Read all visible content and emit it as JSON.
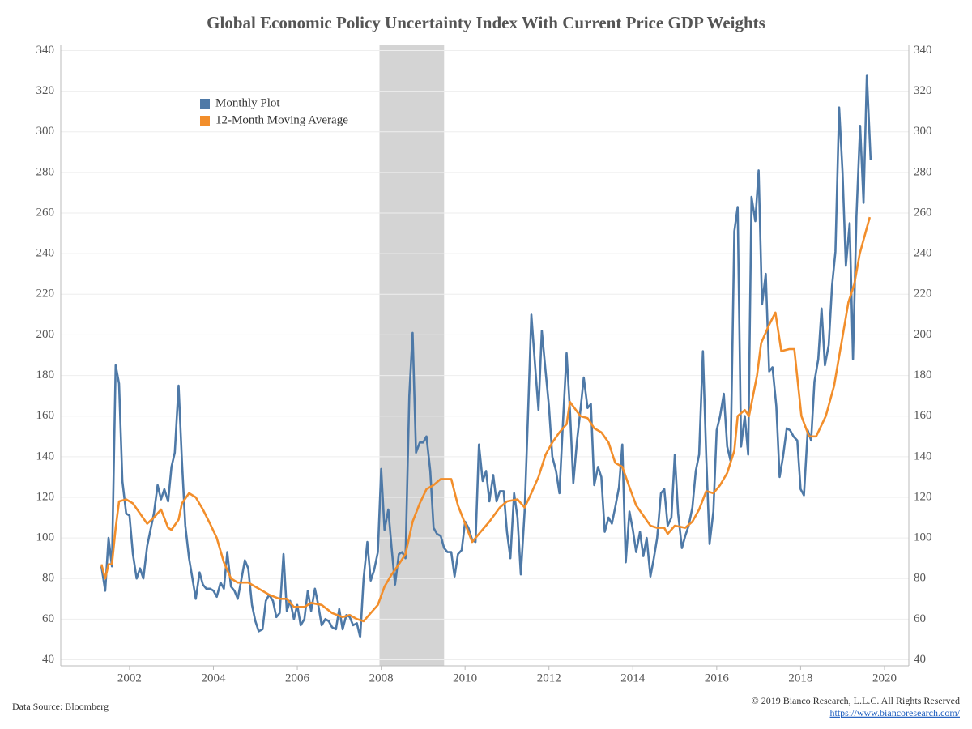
{
  "chart_data": {
    "type": "line",
    "title": "Global Economic Policy Uncertainty Index With Current Price GDP Weights",
    "source": "Data Source: Bloomberg",
    "copyright": "© 2019  Bianco Research, L.L.C. All Rights Reserved",
    "url": "https://www.biancoresearch.com/",
    "xlim": [
      2000.36,
      2020.58
    ],
    "xticks": [
      2002,
      2004,
      2006,
      2008,
      2010,
      2012,
      2014,
      2016,
      2018,
      2020
    ],
    "ylim": [
      37,
      343
    ],
    "yticks": [
      40,
      60,
      80,
      100,
      120,
      140,
      160,
      180,
      200,
      220,
      240,
      260,
      280,
      300,
      320,
      340
    ],
    "grid": true,
    "right_axis": true,
    "legend": "upper-left",
    "recession": [
      2007.96,
      2009.5
    ],
    "recession_color": "#d4d4d4",
    "series": [
      {
        "name": "Monthly Plot",
        "color": "#4e79a7",
        "x": [
          2001.33,
          2001.42,
          2001.5,
          2001.58,
          2001.67,
          2001.75,
          2001.83,
          2001.92,
          2002.0,
          2002.08,
          2002.17,
          2002.25,
          2002.33,
          2002.42,
          2002.5,
          2002.58,
          2002.67,
          2002.75,
          2002.83,
          2002.92,
          2003.0,
          2003.08,
          2003.17,
          2003.25,
          2003.33,
          2003.42,
          2003.5,
          2003.58,
          2003.67,
          2003.75,
          2003.83,
          2003.92,
          2004.0,
          2004.08,
          2004.17,
          2004.25,
          2004.33,
          2004.42,
          2004.5,
          2004.58,
          2004.67,
          2004.75,
          2004.83,
          2004.92,
          2005.0,
          2005.08,
          2005.17,
          2005.25,
          2005.33,
          2005.42,
          2005.5,
          2005.58,
          2005.67,
          2005.75,
          2005.83,
          2005.92,
          2006.0,
          2006.08,
          2006.17,
          2006.25,
          2006.33,
          2006.42,
          2006.5,
          2006.58,
          2006.67,
          2006.75,
          2006.83,
          2006.92,
          2007.0,
          2007.08,
          2007.17,
          2007.25,
          2007.33,
          2007.42,
          2007.5,
          2007.58,
          2007.67,
          2007.75,
          2007.83,
          2007.92,
          2008.0,
          2008.08,
          2008.17,
          2008.25,
          2008.33,
          2008.42,
          2008.5,
          2008.58,
          2008.67,
          2008.75,
          2008.83,
          2008.92,
          2009.0,
          2009.08,
          2009.17,
          2009.25,
          2009.33,
          2009.42,
          2009.5,
          2009.58,
          2009.67,
          2009.75,
          2009.83,
          2009.92,
          2010.0,
          2010.08,
          2010.17,
          2010.25,
          2010.33,
          2010.42,
          2010.5,
          2010.58,
          2010.67,
          2010.75,
          2010.83,
          2010.92,
          2011.0,
          2011.08,
          2011.17,
          2011.25,
          2011.33,
          2011.42,
          2011.5,
          2011.58,
          2011.67,
          2011.75,
          2011.83,
          2011.92,
          2012.0,
          2012.08,
          2012.17,
          2012.25,
          2012.33,
          2012.42,
          2012.5,
          2012.58,
          2012.67,
          2012.75,
          2012.83,
          2012.92,
          2013.0,
          2013.08,
          2013.17,
          2013.25,
          2013.33,
          2013.42,
          2013.5,
          2013.58,
          2013.67,
          2013.75,
          2013.83,
          2013.92,
          2014.0,
          2014.08,
          2014.17,
          2014.25,
          2014.33,
          2014.42,
          2014.5,
          2014.58,
          2014.67,
          2014.75,
          2014.83,
          2014.92,
          2015.0,
          2015.08,
          2015.17,
          2015.25,
          2015.33,
          2015.42,
          2015.5,
          2015.58,
          2015.67,
          2015.75,
          2015.83,
          2015.92,
          2016.0,
          2016.08,
          2016.17,
          2016.25,
          2016.33,
          2016.42,
          2016.5,
          2016.58,
          2016.67,
          2016.75,
          2016.83,
          2016.92,
          2017.0,
          2017.08,
          2017.17,
          2017.25,
          2017.33,
          2017.42,
          2017.5,
          2017.58,
          2017.67,
          2017.75,
          2017.83,
          2017.92,
          2018.0,
          2018.08,
          2018.17,
          2018.25,
          2018.33,
          2018.42,
          2018.5,
          2018.58,
          2018.67,
          2018.75,
          2018.83,
          2018.92,
          2019.0,
          2019.08,
          2019.17,
          2019.25,
          2019.33,
          2019.42,
          2019.5,
          2019.58,
          2019.67
        ],
        "values": [
          86,
          74,
          100,
          86,
          185,
          176,
          128,
          112,
          111,
          92,
          80,
          85,
          80,
          96,
          104,
          112,
          126,
          119,
          124,
          118,
          135,
          142,
          175,
          138,
          106,
          90,
          80,
          70,
          83,
          77,
          75,
          75,
          74,
          71,
          78,
          75,
          93,
          76,
          74,
          70,
          80,
          89,
          85,
          67,
          59,
          54,
          55,
          69,
          72,
          69,
          61,
          63,
          92,
          64,
          69,
          60,
          67,
          57,
          60,
          74,
          64,
          75,
          67,
          57,
          60,
          59,
          56,
          55,
          65,
          55,
          62,
          61,
          57,
          58,
          51,
          80,
          98,
          79,
          84,
          93,
          134,
          104,
          114,
          95,
          77,
          92,
          93,
          90,
          170,
          201,
          142,
          147,
          147,
          150,
          133,
          105,
          102,
          101,
          95,
          93,
          93,
          81,
          92,
          94,
          108,
          105,
          99,
          98,
          146,
          128,
          133,
          118,
          131,
          118,
          123,
          123,
          103,
          90,
          122,
          110,
          82,
          113,
          160,
          210,
          185,
          163,
          202,
          182,
          165,
          140,
          133,
          122,
          155,
          191,
          163,
          127,
          148,
          163,
          179,
          164,
          166,
          126,
          135,
          130,
          103,
          110,
          107,
          115,
          125,
          146,
          88,
          113,
          104,
          93,
          103,
          91,
          100,
          81,
          90,
          100,
          122,
          124,
          106,
          110,
          141,
          112,
          95,
          101,
          106,
          115,
          133,
          141,
          192,
          140,
          97,
          113,
          153,
          160,
          171,
          145,
          138,
          251,
          263,
          145,
          160,
          141,
          268,
          256,
          281,
          215,
          230,
          182,
          184,
          165,
          130,
          140,
          154,
          153,
          150,
          148,
          124,
          121,
          153,
          148,
          177,
          188,
          213,
          185,
          195,
          224,
          241,
          312,
          280,
          234,
          255,
          188,
          258,
          303,
          265,
          328,
          286
        ]
      },
      {
        "name": "12-Month Moving Average",
        "color": "#f28e2b",
        "x": [
          2001.33,
          2001.42,
          2001.5,
          2001.58,
          2001.67,
          2001.75,
          2001.92,
          2002.08,
          2002.25,
          2002.42,
          2002.58,
          2002.75,
          2002.92,
          2003.0,
          2003.17,
          2003.25,
          2003.42,
          2003.58,
          2003.75,
          2003.92,
          2004.08,
          2004.25,
          2004.42,
          2004.58,
          2004.83,
          2005.08,
          2005.33,
          2005.58,
          2005.75,
          2005.92,
          2006.17,
          2006.33,
          2006.58,
          2006.83,
          2007.08,
          2007.25,
          2007.42,
          2007.58,
          2007.75,
          2007.92,
          2008.08,
          2008.25,
          2008.42,
          2008.58,
          2008.75,
          2008.92,
          2009.08,
          2009.25,
          2009.42,
          2009.67,
          2009.83,
          2010.0,
          2010.17,
          2010.33,
          2010.58,
          2010.83,
          2011.0,
          2011.25,
          2011.42,
          2011.58,
          2011.75,
          2011.92,
          2012.08,
          2012.25,
          2012.42,
          2012.5,
          2012.75,
          2012.92,
          2013.08,
          2013.25,
          2013.42,
          2013.58,
          2013.75,
          2013.92,
          2014.08,
          2014.25,
          2014.42,
          2014.58,
          2014.75,
          2014.83,
          2015.0,
          2015.25,
          2015.42,
          2015.58,
          2015.75,
          2015.92,
          2016.08,
          2016.25,
          2016.42,
          2016.5,
          2016.67,
          2016.77,
          2016.96,
          2017.06,
          2017.25,
          2017.4,
          2017.54,
          2017.73,
          2017.85,
          2018.02,
          2018.2,
          2018.37,
          2018.6,
          2018.8,
          2018.99,
          2019.14,
          2019.28,
          2019.41,
          2019.65
        ],
        "values": [
          87,
          80,
          87,
          87,
          105,
          118,
          119,
          117,
          112,
          107,
          110,
          114,
          105,
          104,
          109,
          117,
          122,
          120,
          114,
          107,
          100,
          88,
          80,
          78,
          78,
          75,
          72,
          70,
          70,
          66,
          66,
          68,
          67,
          63,
          61,
          62,
          60,
          59,
          63,
          67,
          76,
          82,
          87,
          92,
          108,
          117,
          124,
          126,
          129,
          129,
          116,
          107,
          98,
          102,
          108,
          115,
          118,
          119,
          115,
          122,
          130,
          141,
          147,
          152,
          156,
          167,
          160,
          159,
          154,
          152,
          147,
          137,
          135,
          125,
          116,
          111,
          106,
          105,
          105,
          102,
          106,
          105,
          108,
          114,
          123,
          122,
          126,
          132,
          143,
          160,
          163,
          160,
          180,
          196,
          205,
          211,
          192,
          193,
          193,
          160,
          150,
          150,
          160,
          175,
          198,
          216,
          225,
          240,
          258
        ]
      }
    ]
  }
}
